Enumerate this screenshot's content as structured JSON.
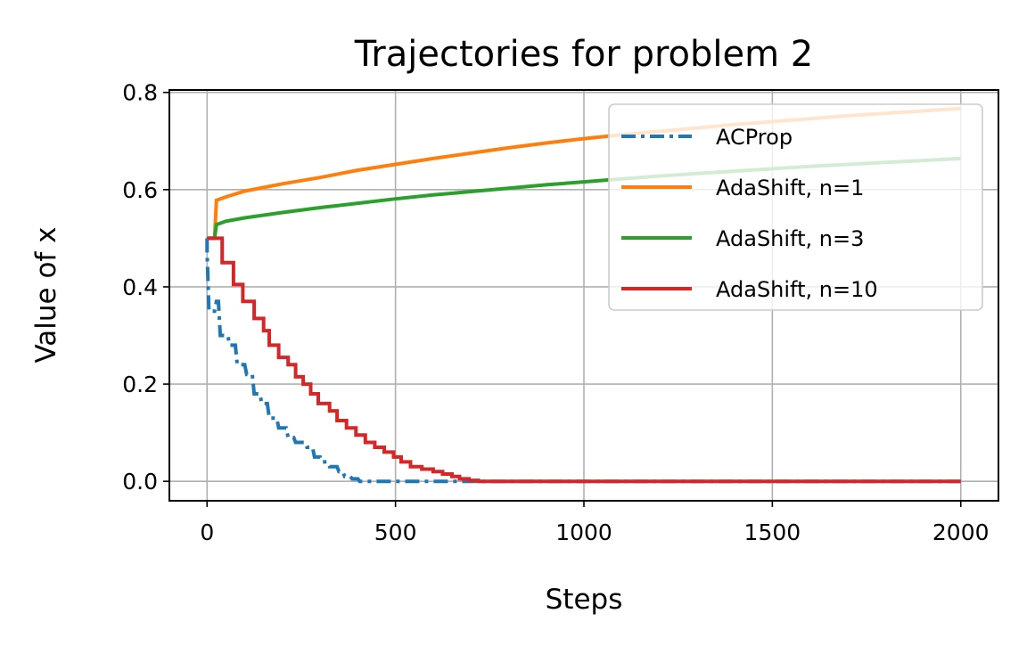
{
  "chart_data": {
    "type": "line",
    "title": "Trajectories for problem 2",
    "xlabel": "Steps",
    "ylabel": "Value of x",
    "xlim": [
      -100,
      2100
    ],
    "ylim": [
      -0.04,
      0.805
    ],
    "xticks": [
      0,
      500,
      1000,
      1500,
      2000
    ],
    "xtick_labels": [
      "0",
      "500",
      "1000",
      "1500",
      "2000"
    ],
    "yticks": [
      0.0,
      0.2,
      0.4,
      0.6,
      0.8
    ],
    "ytick_labels": [
      "0.0",
      "0.2",
      "0.4",
      "0.6",
      "0.8"
    ],
    "grid": true,
    "legend_position": "top-right",
    "series": [
      {
        "name": "ACProp",
        "color": "#1f77b4",
        "style": "dashdot",
        "x": [
          0,
          0,
          5,
          20,
          25,
          30,
          35,
          55,
          60,
          75,
          80,
          100,
          105,
          120,
          125,
          140,
          145,
          160,
          165,
          185,
          190,
          210,
          215,
          230,
          235,
          260,
          265,
          280,
          285,
          300,
          305,
          320,
          325,
          345,
          350,
          360,
          365,
          380,
          385,
          400,
          405,
          700,
          2000
        ],
        "y": [
          0.5,
          0.47,
          0.35,
          0.35,
          0.37,
          0.37,
          0.3,
          0.3,
          0.28,
          0.28,
          0.24,
          0.24,
          0.22,
          0.22,
          0.18,
          0.18,
          0.16,
          0.16,
          0.13,
          0.13,
          0.11,
          0.11,
          0.09,
          0.09,
          0.08,
          0.08,
          0.07,
          0.07,
          0.05,
          0.05,
          0.04,
          0.04,
          0.03,
          0.03,
          0.02,
          0.02,
          0.01,
          0.01,
          0.005,
          0.005,
          0.0,
          0.0,
          0.0
        ]
      },
      {
        "name": "AdaShift, n=1",
        "color": "#ff7f0e",
        "style": "solid",
        "x": [
          0,
          20,
          25,
          50,
          100,
          200,
          300,
          400,
          500,
          600,
          700,
          800,
          900,
          1000,
          1100,
          1200,
          1300,
          1400,
          1500,
          1600,
          1700,
          1800,
          1900,
          2000
        ],
        "y": [
          0.5,
          0.5,
          0.578,
          0.585,
          0.597,
          0.612,
          0.625,
          0.64,
          0.652,
          0.664,
          0.675,
          0.686,
          0.696,
          0.705,
          0.713,
          0.72,
          0.727,
          0.734,
          0.74,
          0.746,
          0.752,
          0.757,
          0.762,
          0.767
        ]
      },
      {
        "name": "AdaShift, n=3",
        "color": "#2ca02c",
        "style": "solid",
        "x": [
          0,
          20,
          25,
          50,
          100,
          200,
          300,
          400,
          500,
          600,
          700,
          800,
          900,
          1000,
          1100,
          1200,
          1300,
          1400,
          1500,
          1600,
          1700,
          1800,
          1900,
          2000
        ],
        "y": [
          0.5,
          0.5,
          0.528,
          0.535,
          0.542,
          0.553,
          0.563,
          0.572,
          0.581,
          0.589,
          0.596,
          0.603,
          0.61,
          0.616,
          0.622,
          0.628,
          0.633,
          0.638,
          0.643,
          0.648,
          0.652,
          0.656,
          0.66,
          0.664
        ]
      },
      {
        "name": "AdaShift, n=10",
        "color": "#d62728",
        "style": "solid",
        "x": [
          0,
          40,
          40,
          70,
          70,
          95,
          95,
          125,
          125,
          150,
          150,
          165,
          165,
          190,
          190,
          215,
          215,
          235,
          235,
          255,
          255,
          275,
          275,
          295,
          295,
          325,
          325,
          345,
          345,
          370,
          370,
          395,
          395,
          420,
          420,
          445,
          445,
          470,
          470,
          495,
          495,
          515,
          515,
          540,
          540,
          570,
          570,
          600,
          600,
          625,
          625,
          650,
          650,
          670,
          670,
          695,
          695,
          720,
          720,
          2000
        ],
        "y": [
          0.5,
          0.5,
          0.45,
          0.45,
          0.405,
          0.405,
          0.37,
          0.37,
          0.335,
          0.335,
          0.31,
          0.31,
          0.28,
          0.28,
          0.255,
          0.255,
          0.24,
          0.24,
          0.215,
          0.215,
          0.2,
          0.2,
          0.18,
          0.18,
          0.16,
          0.16,
          0.145,
          0.145,
          0.125,
          0.125,
          0.11,
          0.11,
          0.095,
          0.095,
          0.08,
          0.08,
          0.07,
          0.07,
          0.06,
          0.06,
          0.05,
          0.05,
          0.04,
          0.04,
          0.03,
          0.03,
          0.025,
          0.025,
          0.02,
          0.02,
          0.015,
          0.015,
          0.01,
          0.01,
          0.005,
          0.005,
          0.002,
          0.002,
          0.0,
          0.0
        ]
      }
    ]
  }
}
